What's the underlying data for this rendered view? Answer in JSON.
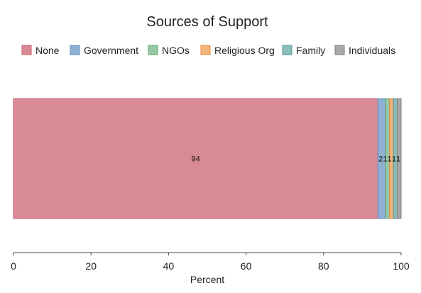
{
  "chart_data": {
    "type": "bar",
    "orientation": "horizontal-stacked",
    "title": "Sources of Support",
    "xlabel": "Percent",
    "ylabel": "",
    "xlim": [
      0,
      100
    ],
    "xticks": [
      "0",
      "20",
      "40",
      "60",
      "80",
      "100"
    ],
    "grid": false,
    "legend_position": "top",
    "series": [
      {
        "name": "None",
        "value": 94,
        "label": "94",
        "color": "#d98b95",
        "stroke": "#c65a6a"
      },
      {
        "name": "Government",
        "value": 2,
        "label": "2",
        "color": "#8fb1d3",
        "stroke": "#5f8fbf"
      },
      {
        "name": "NGOs",
        "value": 1,
        "label": "1",
        "color": "#97c7a3",
        "stroke": "#5fa873"
      },
      {
        "name": "Religious Org",
        "value": 1,
        "label": "1",
        "color": "#f4b47e",
        "stroke": "#e58a3f"
      },
      {
        "name": "Family",
        "value": 1,
        "label": "1",
        "color": "#8abcb8",
        "stroke": "#4f9590"
      },
      {
        "name": "Individuals",
        "value": 1,
        "label": "1",
        "color": "#a9a9a9",
        "stroke": "#7d7d7d"
      }
    ]
  }
}
